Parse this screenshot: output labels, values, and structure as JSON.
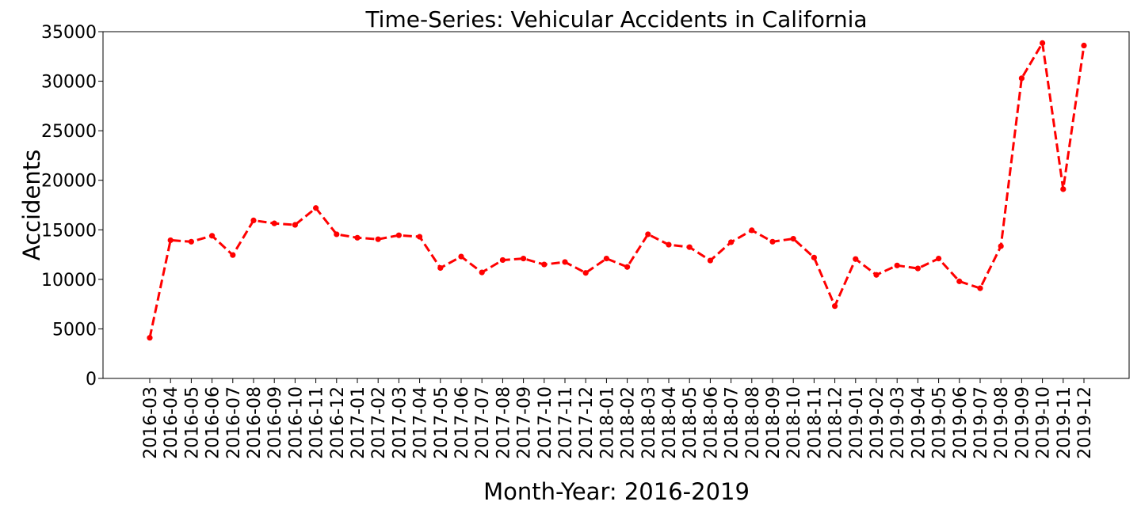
{
  "chart_data": {
    "type": "line",
    "title": "Time-Series: Vehicular Accidents in California",
    "xlabel": "Month-Year: 2016-2019",
    "ylabel": "Accidents",
    "ylim": [
      0,
      35000
    ],
    "yticks": [
      0,
      5000,
      10000,
      15000,
      20000,
      25000,
      30000,
      35000
    ],
    "grid": false,
    "legend": "none",
    "categories": [
      "2016-03",
      "2016-04",
      "2016-05",
      "2016-06",
      "2016-07",
      "2016-08",
      "2016-09",
      "2016-10",
      "2016-11",
      "2016-12",
      "2017-01",
      "2017-02",
      "2017-03",
      "2017-04",
      "2017-05",
      "2017-06",
      "2017-07",
      "2017-08",
      "2017-09",
      "2017-10",
      "2017-11",
      "2017-12",
      "2018-01",
      "2018-02",
      "2018-03",
      "2018-04",
      "2018-05",
      "2018-06",
      "2018-07",
      "2018-08",
      "2018-09",
      "2018-10",
      "2018-11",
      "2018-12",
      "2019-01",
      "2019-02",
      "2019-03",
      "2019-04",
      "2019-05",
      "2019-06",
      "2019-07",
      "2019-08",
      "2019-09",
      "2019-10",
      "2019-11",
      "2019-12"
    ],
    "series": [
      {
        "color": "#ff0000",
        "line_style": "dashed",
        "marker": "circle",
        "values": [
          4100,
          13950,
          13800,
          14400,
          12450,
          15950,
          15650,
          15500,
          17200,
          14550,
          14200,
          14050,
          14450,
          14300,
          11150,
          12300,
          10700,
          11950,
          12100,
          11500,
          11750,
          10650,
          12100,
          11250,
          14550,
          13500,
          13250,
          11900,
          13750,
          14950,
          13800,
          14100,
          12200,
          7300,
          12050,
          10450,
          11400,
          11100,
          12100,
          9800,
          9100,
          13350,
          30300,
          33850,
          19100,
          33600
        ]
      }
    ]
  }
}
